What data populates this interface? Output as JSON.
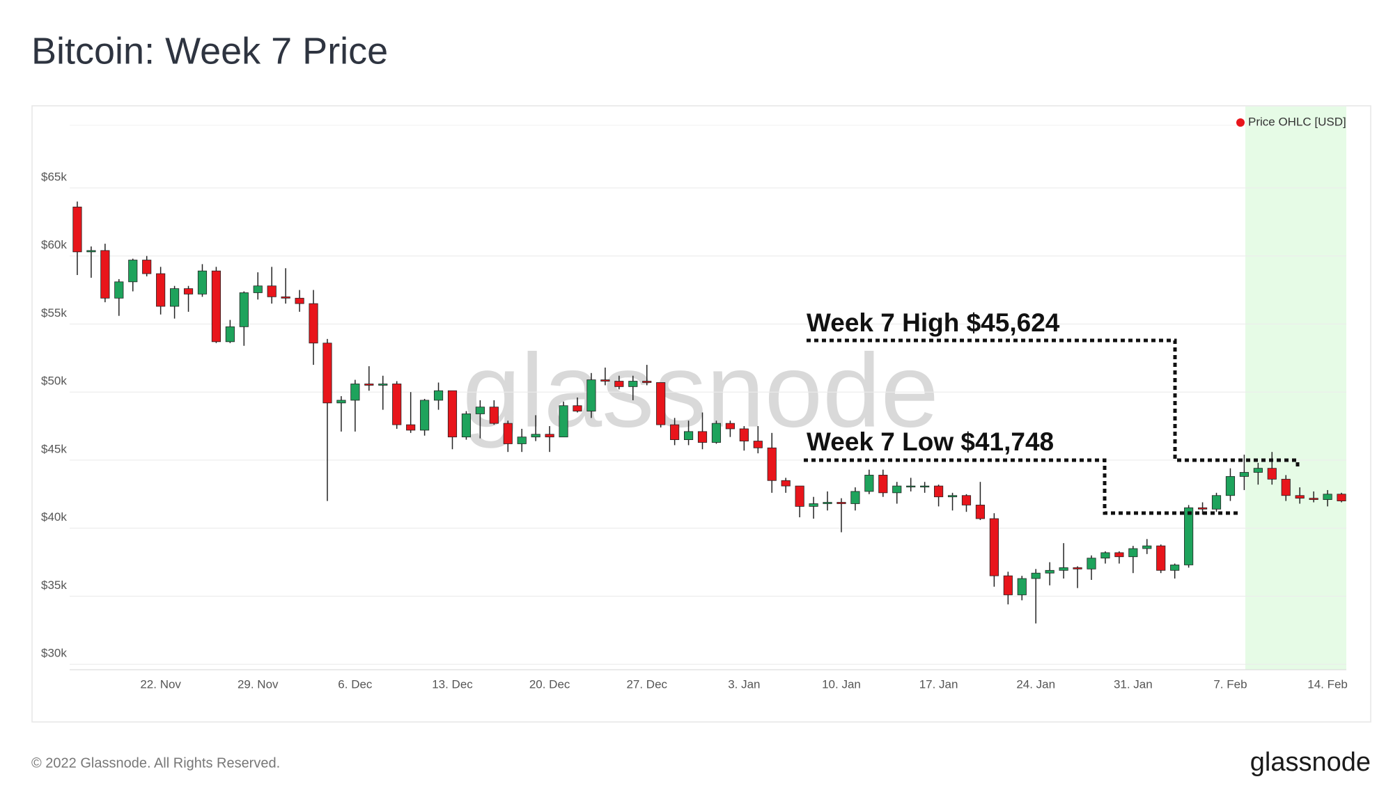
{
  "chart_data": {
    "type": "candlestick",
    "title": "Bitcoin: Week 7 Price",
    "categories": [
      null,
      null,
      null,
      null,
      null,
      null,
      "22. Nov",
      null,
      null,
      null,
      null,
      null,
      null,
      "29. Nov",
      null,
      null,
      null,
      null,
      null,
      null,
      "6. Dec",
      null,
      null,
      null,
      null,
      null,
      null,
      "13. Dec",
      null,
      null,
      null,
      null,
      null,
      null,
      "20. Dec",
      null,
      null,
      null,
      null,
      null,
      null,
      "27. Dec",
      null,
      null,
      null,
      null,
      null,
      null,
      "3. Jan",
      null,
      null,
      null,
      null,
      null,
      null,
      "10. Jan",
      null,
      null,
      null,
      null,
      null,
      null,
      "17. Jan",
      null,
      null,
      null,
      null,
      null,
      null,
      "24. Jan",
      null,
      null,
      null,
      null,
      null,
      null,
      "31. Jan",
      null,
      null,
      null,
      null,
      null,
      null,
      "7. Feb",
      null,
      null,
      null,
      null,
      null,
      null,
      "14. Feb",
      null
    ],
    "series": [
      {
        "name": "Price OHLC [USD]",
        "color": "#e8151b",
        "up_color": "#1ea35c",
        "down_color": "#e8151b",
        "open": [
          63600,
          60300,
          60400,
          56900,
          58100,
          59700,
          58700,
          56300,
          57600,
          57200,
          58900,
          53700,
          54800,
          57300,
          57800,
          57000,
          56900,
          56500,
          53600,
          49200,
          49400,
          50600,
          50500,
          50600,
          47600,
          47200,
          49400,
          50100,
          46700,
          48400,
          48900,
          47700,
          46200,
          46700,
          46900,
          46700,
          49000,
          48600,
          50900,
          50800,
          50400,
          50800,
          50700,
          47600,
          46500,
          47100,
          46300,
          47700,
          47300,
          46400,
          45900,
          43500,
          43100,
          41600,
          41800,
          41900,
          41800,
          42700,
          43900,
          42600,
          43100,
          43100,
          43100,
          42300,
          42400,
          41700,
          40700,
          36500,
          35100,
          36300,
          36700,
          36900,
          37100,
          37000,
          37800,
          38200,
          37900,
          38500,
          38700,
          36900,
          37300,
          41500,
          41400,
          42400,
          43800,
          44100,
          44400,
          43600,
          42400,
          42200,
          42100,
          42500
        ],
        "high": [
          64000,
          60700,
          60900,
          58300,
          59800,
          60000,
          59200,
          57800,
          57800,
          59400,
          59200,
          55300,
          57400,
          58800,
          59200,
          59100,
          57500,
          57500,
          53900,
          49700,
          50900,
          51900,
          51200,
          50800,
          50000,
          49500,
          50700,
          50100,
          48600,
          49400,
          49400,
          47900,
          47300,
          48300,
          47500,
          49300,
          49600,
          51400,
          51800,
          51200,
          51200,
          52000,
          50700,
          48100,
          47900,
          48500,
          47900,
          47900,
          47500,
          47500,
          47000,
          43700,
          43100,
          42300,
          42700,
          42200,
          43000,
          44300,
          44300,
          43400,
          43700,
          43400,
          43200,
          42600,
          42500,
          43400,
          41100,
          36800,
          36500,
          37000,
          37500,
          38900,
          37200,
          38000,
          38300,
          38300,
          38700,
          39200,
          38800,
          37400,
          41700,
          41900,
          42600,
          44400,
          45400,
          44800,
          45600,
          43900,
          43000,
          42700,
          42800,
          42600
        ],
        "low": [
          58600,
          58400,
          56600,
          55600,
          57400,
          58500,
          55700,
          55400,
          55900,
          57000,
          53600,
          53600,
          53400,
          56800,
          56500,
          56500,
          55900,
          52000,
          42000,
          47100,
          47100,
          50100,
          48700,
          47300,
          47000,
          46800,
          48700,
          45800,
          46500,
          46600,
          47600,
          45600,
          45600,
          46400,
          45600,
          46700,
          48500,
          48100,
          50500,
          50200,
          49400,
          50500,
          47400,
          46100,
          46100,
          45800,
          46200,
          46700,
          45700,
          45500,
          42600,
          42600,
          40800,
          40700,
          41300,
          39700,
          41300,
          42500,
          42300,
          41800,
          42700,
          42600,
          41600,
          41300,
          41200,
          40600,
          35700,
          34400,
          34700,
          33000,
          35800,
          36300,
          35600,
          36200,
          37400,
          37400,
          36700,
          38100,
          36700,
          36300,
          37100,
          41000,
          41200,
          42000,
          42800,
          43200,
          43200,
          42000,
          41800,
          41900,
          41600,
          41900
        ],
        "close": [
          60300,
          60400,
          56900,
          58100,
          59700,
          58700,
          56300,
          57600,
          57200,
          58900,
          53700,
          54800,
          57300,
          57800,
          57000,
          56900,
          56500,
          53600,
          49200,
          49400,
          50600,
          50500,
          50600,
          47600,
          47200,
          49400,
          50100,
          46700,
          48400,
          48900,
          47700,
          46200,
          46700,
          46900,
          46700,
          49000,
          48600,
          50900,
          50800,
          50400,
          50800,
          50700,
          47600,
          46500,
          47100,
          46300,
          47700,
          47300,
          46400,
          45900,
          43500,
          43100,
          41600,
          41800,
          41900,
          41800,
          42700,
          43900,
          42600,
          43100,
          43100,
          43100,
          42300,
          42400,
          41700,
          40700,
          36500,
          35100,
          36300,
          36700,
          36900,
          37100,
          37000,
          37800,
          38200,
          37900,
          38500,
          38700,
          36900,
          37300,
          41500,
          41400,
          42400,
          43800,
          44100,
          44400,
          43600,
          42400,
          42200,
          42100,
          42500,
          42000
        ]
      }
    ],
    "ylim": [
      29600,
      69600
    ],
    "yticks": [
      {
        "value": 30000,
        "label": "$30k"
      },
      {
        "value": 35000,
        "label": "$35k"
      },
      {
        "value": 40000,
        "label": "$40k"
      },
      {
        "value": 45000,
        "label": "$45k"
      },
      {
        "value": 50000,
        "label": "$50k"
      },
      {
        "value": 55000,
        "label": "$55k"
      },
      {
        "value": 60000,
        "label": "$60k"
      },
      {
        "value": 65000,
        "label": "$65k"
      }
    ],
    "grid": true,
    "legend": "top-right",
    "annotations": [
      "Week 7 High $45,624",
      "Week 7 Low $41,748"
    ]
  },
  "watermark": "glassnode",
  "footer": "© 2022 Glassnode. All Rights Reserved.",
  "logo": "glassnode"
}
